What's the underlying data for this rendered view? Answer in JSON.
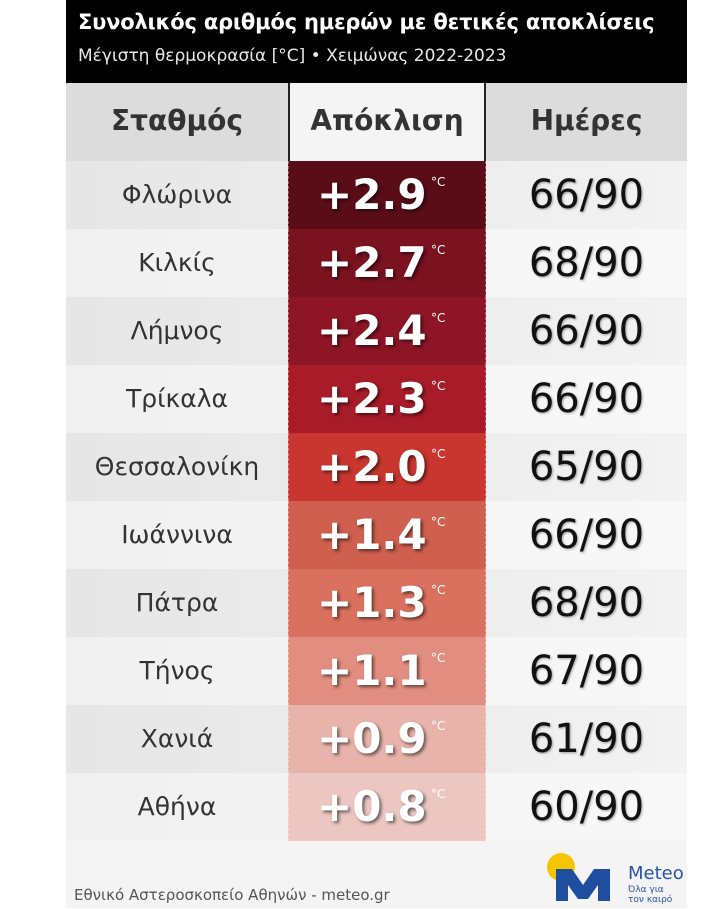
{
  "title": "Συνολικός αριθμός ημερών με θετικές αποκλίσεις",
  "subtitle": "Μέγιστη θερμοκρασία [°C] • Χειμώνας 2022-2023",
  "headers": {
    "station": "Σταθμός",
    "deviation": "Απόκλιση",
    "days": "Ημέρες"
  },
  "unit": "°C",
  "colors": {
    "deviation_scale": [
      "#5a0d17",
      "#7a1220",
      "#8e1525",
      "#a81c2a",
      "#c8362f",
      "#cf5f4e",
      "#d9715e",
      "#e18e80",
      "#e8b3aa",
      "#ecc7c1"
    ]
  },
  "chart_data": {
    "type": "table",
    "columns": [
      "Σταθμός",
      "Απόκλιση",
      "Ημέρες"
    ],
    "rows": [
      {
        "station": "Φλώρινα",
        "deviation": "+2.9",
        "days": "66/90"
      },
      {
        "station": "Κιλκίς",
        "deviation": "+2.7",
        "days": "68/90"
      },
      {
        "station": "Λήμνος",
        "deviation": "+2.4",
        "days": "66/90"
      },
      {
        "station": "Τρίκαλα",
        "deviation": "+2.3",
        "days": "66/90"
      },
      {
        "station": "Θεσσαλονίκη",
        "deviation": "+2.0",
        "days": "65/90"
      },
      {
        "station": "Ιωάννινα",
        "deviation": "+1.4",
        "days": "66/90"
      },
      {
        "station": "Πάτρα",
        "deviation": "+1.3",
        "days": "68/90"
      },
      {
        "station": "Τήνος",
        "deviation": "+1.1",
        "days": "67/90"
      },
      {
        "station": "Χανιά",
        "deviation": "+0.9",
        "days": "61/90"
      },
      {
        "station": "Αθήνα",
        "deviation": "+0.8",
        "days": "60/90"
      }
    ]
  },
  "footer": {
    "source": "Εθνικό Αστεροσκοπείο Αθηνών - meteo.gr",
    "logo_word": "Meteo",
    "logo_tagline": "Όλα για τον καιρό",
    "logo_icon": "meteo-logo-icon"
  }
}
